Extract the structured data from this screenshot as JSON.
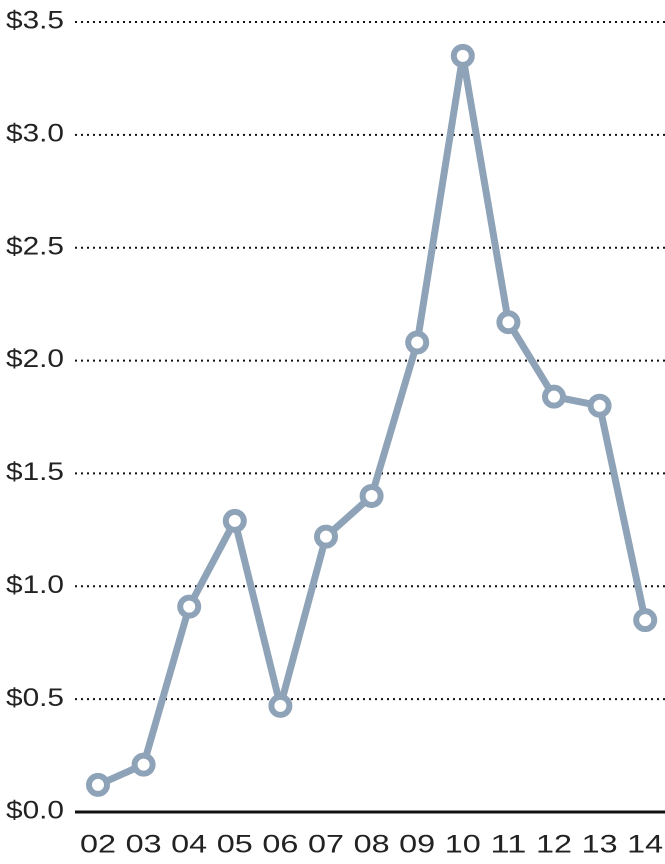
{
  "chart_data": {
    "type": "line",
    "categories": [
      "02",
      "03",
      "04",
      "05",
      "06",
      "07",
      "08",
      "09",
      "10",
      "11",
      "12",
      "13",
      "14"
    ],
    "series": [
      {
        "color": "#8ea3b7",
        "values": [
          0.12,
          0.21,
          0.91,
          1.29,
          0.47,
          1.22,
          1.4,
          2.08,
          3.35,
          2.17,
          1.84,
          1.8,
          0.85
        ]
      }
    ],
    "ylim": [
      0,
      3.5
    ],
    "yticks": [
      {
        "value": 0,
        "label": "$0.0"
      },
      {
        "value": 0.5,
        "label": "$0.5"
      },
      {
        "value": 1,
        "label": "$1.0"
      },
      {
        "value": 1.5,
        "label": "$1.5"
      },
      {
        "value": 2,
        "label": "$2.0"
      },
      {
        "value": 2.5,
        "label": "$2.5"
      },
      {
        "value": 3,
        "label": "$3.0"
      },
      {
        "value": 3.5,
        "label": "$3.5"
      }
    ],
    "grid": true
  }
}
